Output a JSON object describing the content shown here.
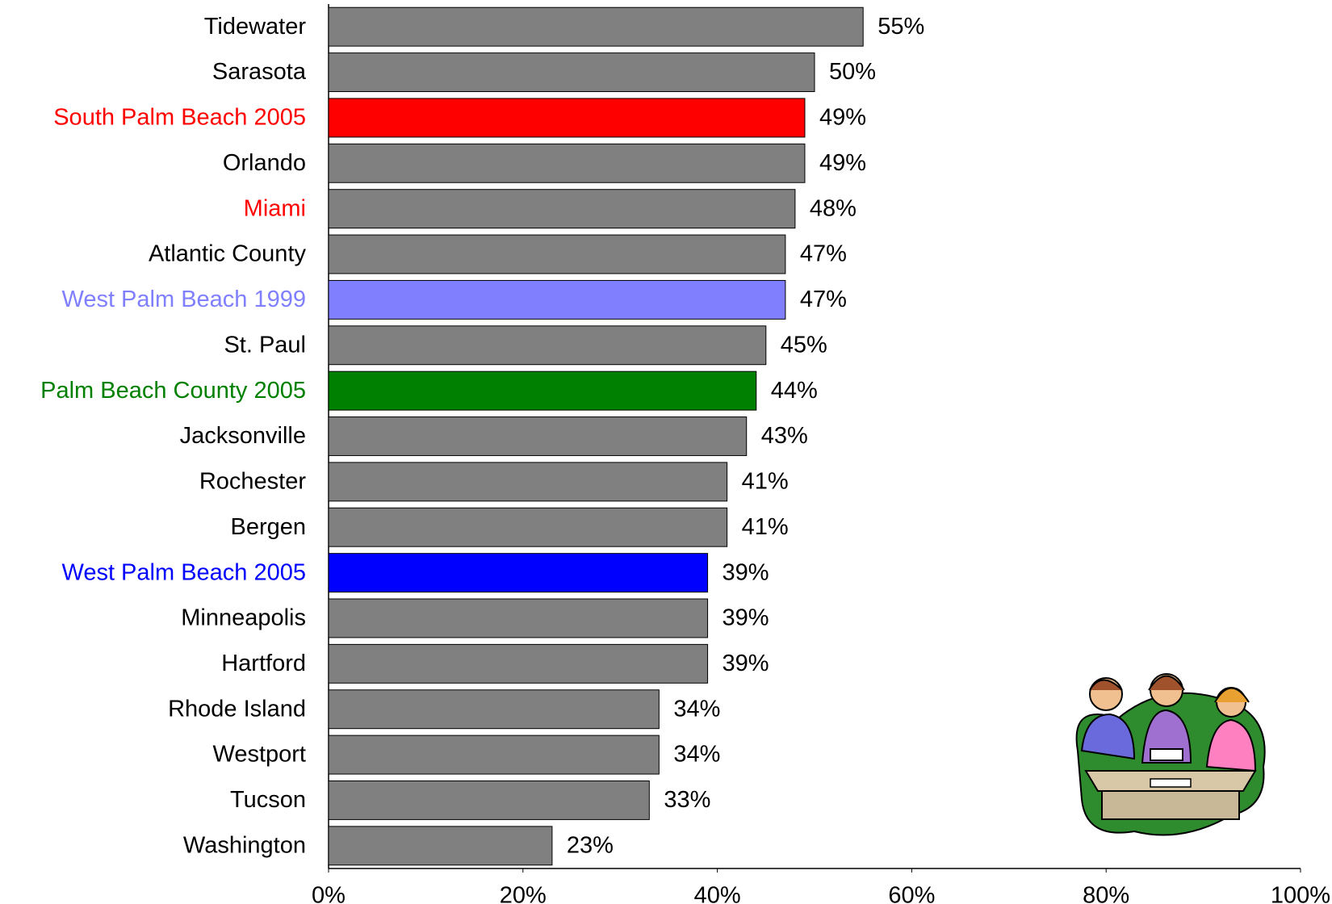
{
  "chart_data": {
    "type": "bar",
    "orientation": "horizontal",
    "categories": [
      "Tidewater",
      "Sarasota",
      "South Palm Beach 2005",
      "Orlando",
      "Miami",
      "Atlantic County",
      "West Palm Beach 1999",
      "St. Paul",
      "Palm Beach County 2005",
      "Jacksonville",
      "Rochester",
      "Bergen",
      "West Palm Beach 2005",
      "Minneapolis",
      "Hartford",
      "Rhode Island",
      "Westport",
      "Tucson",
      "Washington"
    ],
    "values": [
      55,
      50,
      49,
      49,
      48,
      47,
      47,
      45,
      44,
      43,
      41,
      41,
      39,
      39,
      39,
      34,
      34,
      33,
      23
    ],
    "value_labels": [
      "55%",
      "50%",
      "49%",
      "49%",
      "48%",
      "47%",
      "47%",
      "45%",
      "44%",
      "43%",
      "41%",
      "41%",
      "39%",
      "39%",
      "39%",
      "34%",
      "34%",
      "33%",
      "23%"
    ],
    "colors": [
      "#808080",
      "#808080",
      "#ff0000",
      "#808080",
      "#808080",
      "#808080",
      "#8080ff",
      "#808080",
      "#008000",
      "#808080",
      "#808080",
      "#808080",
      "#0000ff",
      "#808080",
      "#808080",
      "#808080",
      "#808080",
      "#808080",
      "#808080"
    ],
    "label_colors": [
      "#000000",
      "#000000",
      "#ff0000",
      "#000000",
      "#ff0000",
      "#000000",
      "#8080ff",
      "#000000",
      "#008000",
      "#000000",
      "#000000",
      "#000000",
      "#0000ff",
      "#000000",
      "#000000",
      "#000000",
      "#000000",
      "#000000",
      "#000000"
    ],
    "xlim": [
      0,
      100
    ],
    "xticks": [
      {
        "value": 0,
        "label": "0%"
      },
      {
        "value": 20,
        "label": "20%"
      },
      {
        "value": 40,
        "label": "40%"
      },
      {
        "value": 60,
        "label": "60%"
      },
      {
        "value": 80,
        "label": "80%"
      },
      {
        "value": 100,
        "label": "100%"
      }
    ],
    "grid": false
  }
}
